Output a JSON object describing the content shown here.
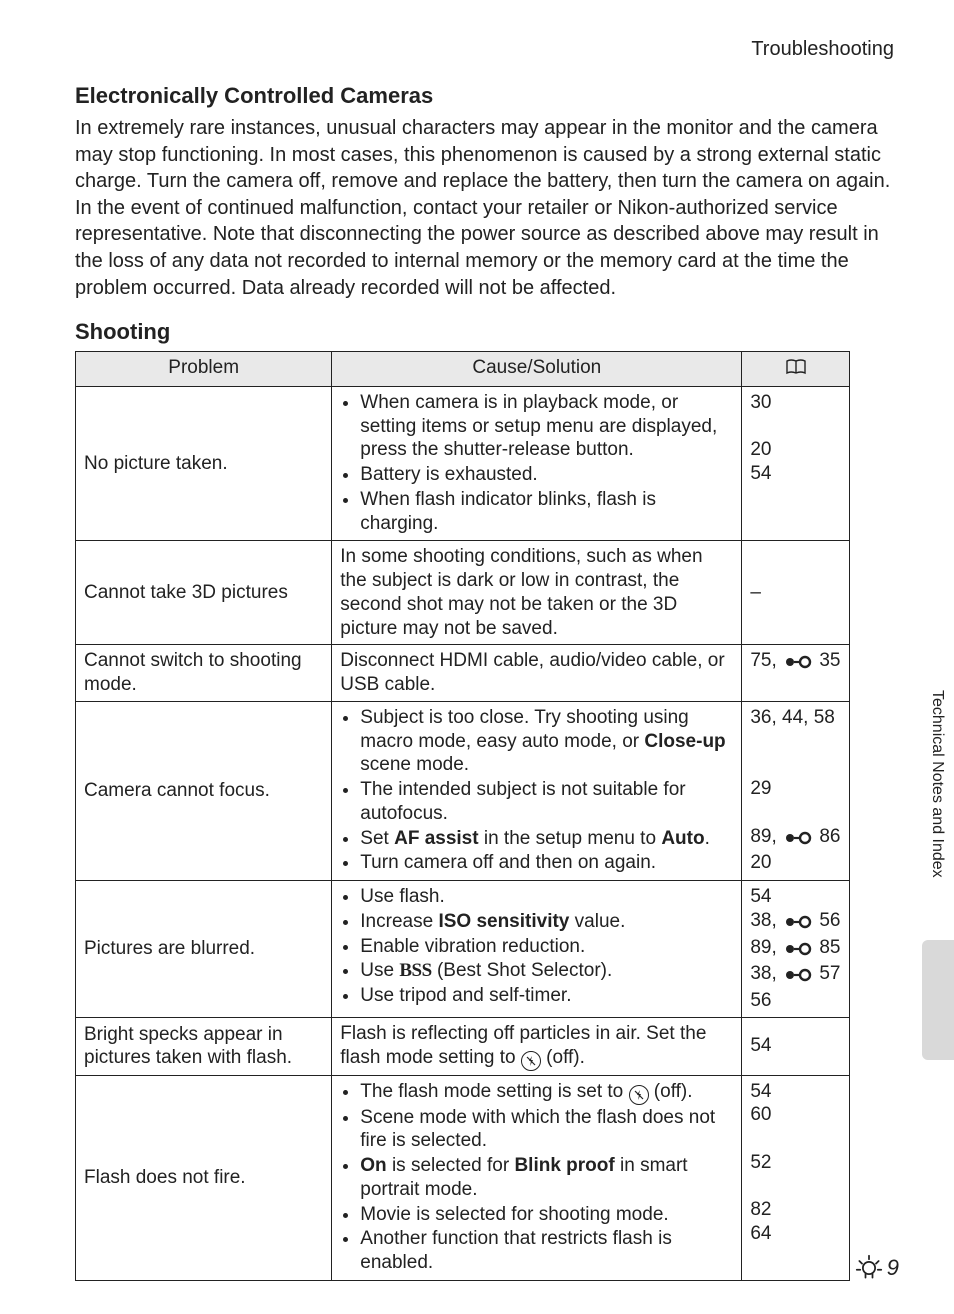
{
  "running_head": "Troubleshooting",
  "section1": {
    "title": "Electronically Controlled Cameras",
    "body": "In extremely rare instances, unusual characters may appear in the monitor and the camera may stop functioning. In most cases, this phenomenon is caused by a strong external static charge. Turn the camera off, remove and replace the battery, then turn the camera on again. In the event of continued malfunction, contact your retailer or Nikon-authorized service representative. Note that disconnecting the power source as described above may result in the loss of any data not recorded to internal memory or the memory card at the time the problem occurred. Data already recorded will not be affected."
  },
  "section2_title": "Shooting",
  "table": {
    "headers": {
      "problem": "Problem",
      "solution": "Cause/Solution"
    },
    "rows": [
      {
        "problem": "No picture taken.",
        "bullets": [
          "When camera is in playback mode, or setting items or setup menu are displayed, press the shutter-release button.",
          "Battery is exhausted.",
          "When flash indicator blinks, flash is charging."
        ],
        "refs": [
          "30",
          "",
          "20",
          "54"
        ]
      },
      {
        "problem": "Cannot take 3D pictures",
        "plain": "In some shooting conditions, such as when the subject is dark or low in contrast, the second shot may not be taken or the 3D picture may not be saved.",
        "refs": [
          "–"
        ]
      },
      {
        "problem": "Cannot switch to shooting mode.",
        "plain": "Disconnect HDMI cable, audio/video cable, or USB cable.",
        "refs_inline": {
          "pre": "75, ",
          "post": " 35",
          "icon": true
        }
      },
      {
        "problem": "Camera cannot focus.",
        "bullets_html": [
          "Subject is too close. Try shooting using macro mode, easy auto mode, or <span class=\"b\">Close-up</span> scene mode.",
          "The intended subject is not suitable for autofocus.",
          "Set <span class=\"b\">AF assist</span> in the setup menu to <span class=\"b\">Auto</span>.",
          "Turn camera off and then on again."
        ],
        "refs_lines": [
          "36, 44, 58",
          "",
          "",
          "29",
          "",
          {
            "pre": "89, ",
            "post": " 86",
            "icon": true
          },
          "20"
        ]
      },
      {
        "problem": "Pictures are blurred.",
        "bullets_html": [
          "Use flash.",
          "Increase <span class=\"b\">ISO sensitivity</span> value.",
          "Enable vibration reduction.",
          "Use <span class=\"bss\">BSS</span> (Best Shot Selector).",
          "Use tripod and self-timer."
        ],
        "refs_lines": [
          "54",
          {
            "pre": "38, ",
            "post": " 56",
            "icon": true
          },
          {
            "pre": "89, ",
            "post": " 85",
            "icon": true
          },
          {
            "pre": "38, ",
            "post": " 57",
            "icon": true
          },
          "56"
        ]
      },
      {
        "problem": "Bright specks appear in pictures taken with flash.",
        "plain_html": "Flash is reflecting off particles in air. Set the flash mode setting to {FLASHOFF} (off).",
        "refs": [
          "54"
        ]
      },
      {
        "problem": "Flash does not fire.",
        "bullets_html": [
          "The flash mode setting is set to {FLASHOFF} (off).",
          "Scene mode with which the flash does not fire is selected.",
          "<span class=\"b\">On</span> is selected for <span class=\"b\">Blink proof</span> in smart portrait mode.",
          "Movie is selected for shooting mode.",
          "Another function that restricts flash is enabled."
        ],
        "refs_lines": [
          "54",
          "60",
          "",
          "52",
          "",
          "82",
          "64"
        ]
      }
    ]
  },
  "side_tab": "Technical Notes and Index",
  "page_number": "9"
}
